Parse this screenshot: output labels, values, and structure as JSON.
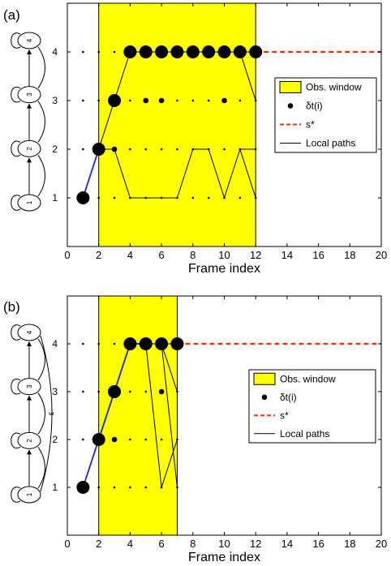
{
  "chart_data": [
    {
      "panel_label": "(a)",
      "type": "scatter",
      "xlabel": "Frame index",
      "xlim": [
        0,
        20
      ],
      "ylim": [
        0,
        5
      ],
      "x_ticks": [
        0,
        2,
        4,
        6,
        8,
        10,
        12,
        14,
        16,
        18,
        20
      ],
      "y_ticks": [
        1,
        2,
        3,
        4
      ],
      "obs_window": [
        2,
        12
      ],
      "grid_x_range": [
        1,
        12
      ],
      "grid_y": [
        1,
        2,
        3,
        4
      ],
      "large_points": [
        [
          1,
          1
        ],
        [
          2,
          2
        ],
        [
          3,
          3
        ],
        [
          4,
          4
        ],
        [
          5,
          4
        ],
        [
          6,
          4
        ],
        [
          7,
          4
        ],
        [
          8,
          4
        ],
        [
          9,
          4
        ],
        [
          10,
          4
        ],
        [
          11,
          4
        ],
        [
          12,
          4
        ]
      ],
      "medium_points": [
        [
          3,
          2
        ],
        [
          5,
          3
        ],
        [
          6,
          3
        ],
        [
          10,
          3
        ]
      ],
      "state_path": [
        [
          1,
          1
        ],
        [
          2,
          2
        ]
      ],
      "s_star": [
        [
          12,
          4
        ],
        [
          20,
          4
        ]
      ],
      "local_paths": [
        [
          [
            2,
            2
          ],
          [
            3,
            3
          ],
          [
            4,
            4
          ],
          [
            5,
            4
          ],
          [
            6,
            4
          ],
          [
            7,
            4
          ],
          [
            8,
            4
          ],
          [
            9,
            4
          ],
          [
            10,
            4
          ],
          [
            11,
            4
          ],
          [
            12,
            4
          ]
        ],
        [
          [
            2,
            2
          ],
          [
            3,
            2
          ],
          [
            4,
            1
          ],
          [
            5,
            1
          ],
          [
            6,
            1
          ],
          [
            7,
            1
          ],
          [
            8,
            2
          ],
          [
            9,
            2
          ],
          [
            10,
            1
          ],
          [
            11,
            2
          ],
          [
            12,
            2
          ]
        ],
        [
          [
            11,
            4
          ],
          [
            12,
            3
          ]
        ],
        [
          [
            11,
            2
          ],
          [
            12,
            1
          ]
        ]
      ],
      "legend": {
        "position": "right",
        "entries": [
          "Obs. window",
          "δt(i)",
          "s*",
          "Local paths"
        ]
      },
      "diagram": {
        "nodes": [
          "4",
          "3",
          "2",
          "1"
        ],
        "skip_label": ""
      }
    },
    {
      "panel_label": "(b)",
      "type": "scatter",
      "xlabel": "Frame index",
      "xlim": [
        0,
        20
      ],
      "ylim": [
        0,
        5
      ],
      "x_ticks": [
        0,
        2,
        4,
        6,
        8,
        10,
        12,
        14,
        16,
        18,
        20
      ],
      "y_ticks": [
        1,
        2,
        3,
        4
      ],
      "obs_window": [
        2,
        7
      ],
      "grid_x_range": [
        1,
        7
      ],
      "grid_y": [
        1,
        2,
        3,
        4
      ],
      "large_points": [
        [
          1,
          1
        ],
        [
          2,
          2
        ],
        [
          3,
          3
        ],
        [
          4,
          4
        ],
        [
          5,
          4
        ],
        [
          6,
          4
        ],
        [
          7,
          4
        ]
      ],
      "medium_points": [
        [
          3,
          2
        ],
        [
          6,
          3
        ]
      ],
      "state_path": [
        [
          1,
          1
        ],
        [
          2,
          2
        ],
        [
          3,
          3
        ],
        [
          4,
          4
        ],
        [
          5,
          4
        ]
      ],
      "s_star": [
        [
          7,
          4
        ],
        [
          20,
          4
        ]
      ],
      "local_paths": [
        [
          [
            5,
            4
          ],
          [
            6,
            4
          ],
          [
            7,
            4
          ]
        ],
        [
          [
            5,
            4
          ],
          [
            6,
            1
          ],
          [
            7,
            2
          ]
        ],
        [
          [
            6,
            4
          ],
          [
            7,
            3
          ]
        ],
        [
          [
            6,
            4
          ],
          [
            7,
            1
          ]
        ]
      ],
      "legend": {
        "position": "right",
        "entries": [
          "Obs. window",
          "δt(i)",
          "s*",
          "Local paths"
        ]
      },
      "diagram": {
        "nodes": [
          "4",
          "3",
          "2",
          "1"
        ],
        "skip_label": "ε"
      }
    }
  ]
}
